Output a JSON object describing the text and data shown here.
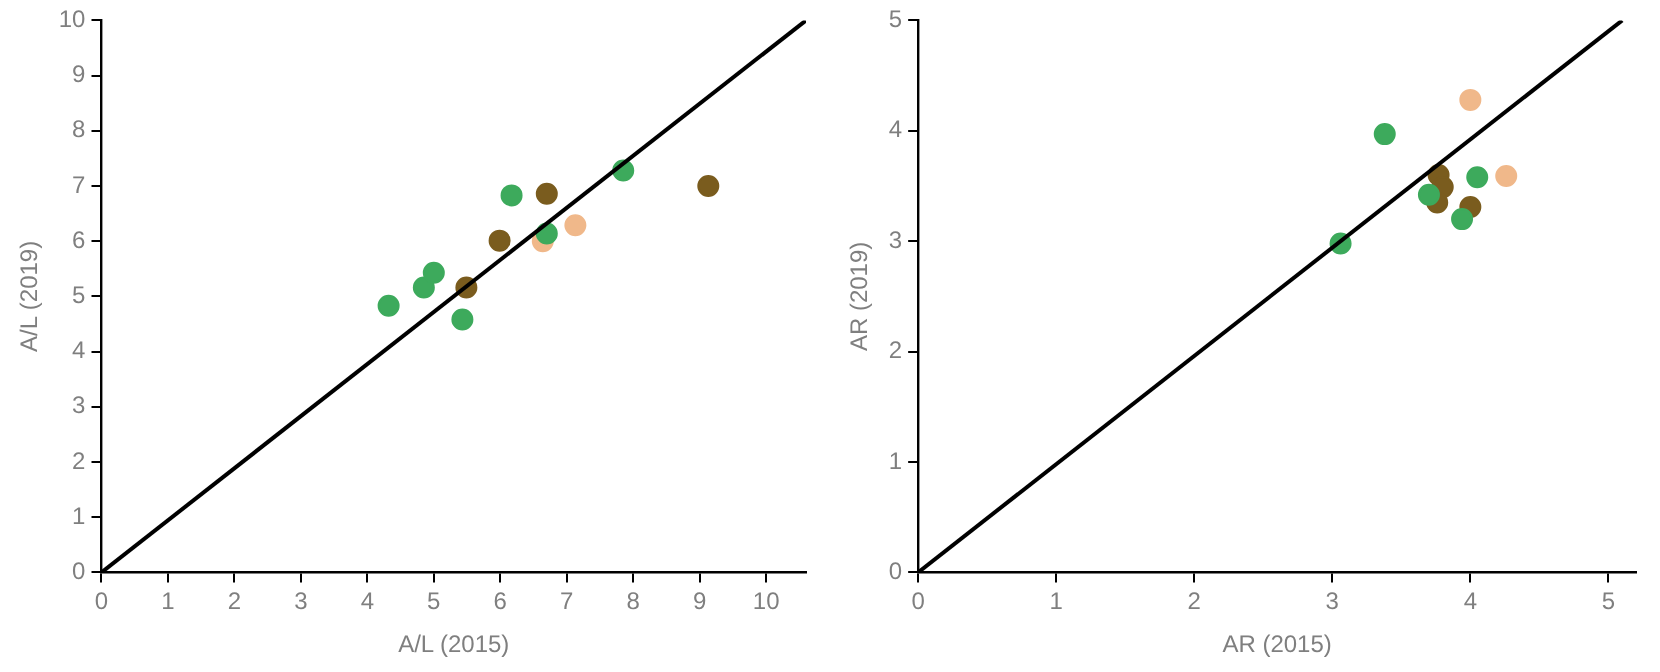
{
  "chart_data": [
    {
      "type": "scatter",
      "xlabel": "A/L (2015)",
      "ylabel": "A/L (2019)",
      "xlim": [
        0,
        10.6
      ],
      "ylim": [
        0,
        10
      ],
      "xticks": [
        0,
        1,
        2,
        3,
        4,
        5,
        6,
        7,
        8,
        9,
        10
      ],
      "yticks": [
        0,
        1,
        2,
        3,
        4,
        5,
        6,
        7,
        8,
        9,
        10
      ],
      "grid": false,
      "legend": false,
      "marker": "circle",
      "series": [
        {
          "color": "#3daa5c",
          "x": [
            4.32,
            4.85,
            5.0,
            5.43,
            6.17,
            6.7,
            7.85
          ],
          "values": [
            4.83,
            5.16,
            5.43,
            4.58,
            6.83,
            6.14,
            7.28
          ]
        },
        {
          "color": "#7a5c1e",
          "x": [
            5.49,
            5.99,
            6.7,
            9.13
          ],
          "values": [
            5.16,
            6.01,
            6.86,
            7.0
          ]
        },
        {
          "color": "#f0b88a",
          "x": [
            6.64,
            7.13
          ],
          "values": [
            6.0,
            6.29
          ]
        },
        {
          "type": "line",
          "color": "#000000",
          "marker": "none",
          "x": [
            0,
            10.6
          ],
          "values": [
            0,
            10
          ]
        }
      ]
    },
    {
      "type": "scatter",
      "xlabel": "AR (2015)",
      "ylabel": "AR (2019)",
      "xlim": [
        0,
        5.2
      ],
      "ylim": [
        0,
        5
      ],
      "xticks": [
        0,
        1,
        2,
        3,
        4,
        5
      ],
      "yticks": [
        0,
        1,
        2,
        3,
        4,
        5
      ],
      "grid": false,
      "legend": false,
      "marker": "circle",
      "series": [
        {
          "color": "#3daa5c",
          "x": [
            3.06,
            3.38,
            3.7,
            3.94,
            4.05
          ],
          "values": [
            2.98,
            3.97,
            3.42,
            3.2,
            3.58
          ]
        },
        {
          "color": "#7a5c1e",
          "x": [
            3.77,
            3.8,
            3.76,
            4.0
          ],
          "values": [
            3.6,
            3.49,
            3.35,
            3.31
          ]
        },
        {
          "color": "#f0b88a",
          "x": [
            4.0,
            4.26
          ],
          "values": [
            4.28,
            3.59
          ]
        },
        {
          "type": "line",
          "color": "#000000",
          "marker": "none",
          "x": [
            0,
            5.1
          ],
          "values": [
            0,
            5
          ]
        }
      ]
    }
  ]
}
